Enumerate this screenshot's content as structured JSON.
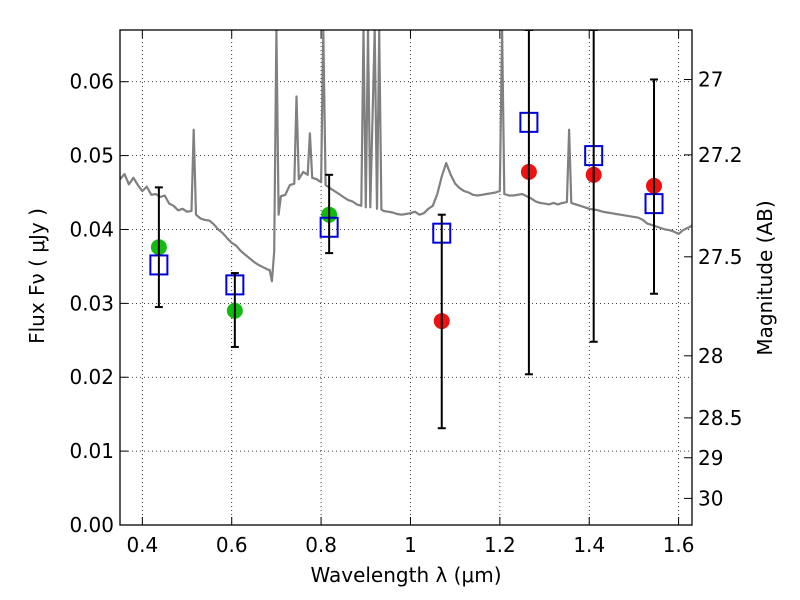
{
  "chart_data": {
    "type": "scatter",
    "xlabel": "Wavelength  λ (μm)",
    "ylabel": "Flux  Fν  ( μJy )",
    "ylabel_right": "Magnitude (AB)",
    "xlim": [
      0.35,
      1.63
    ],
    "ylim": [
      0.0,
      0.067
    ],
    "x_ticks": [
      0.4,
      0.6,
      0.8,
      1.0,
      1.2,
      1.4,
      1.6
    ],
    "x_tick_labels": [
      "0.4",
      "0.6",
      "0.8",
      "1",
      "1.2",
      "1.4",
      "1.6"
    ],
    "y_ticks": [
      0.0,
      0.01,
      0.02,
      0.03,
      0.04,
      0.05,
      0.06
    ],
    "y_tick_labels": [
      "0.00",
      "0.01",
      "0.02",
      "0.03",
      "0.04",
      "0.05",
      "0.06"
    ],
    "right_ticks": [
      {
        "flux": 0.0603,
        "label": "27"
      },
      {
        "flux": 0.0501,
        "label": "27.2"
      },
      {
        "flux": 0.0363,
        "label": "27.5"
      },
      {
        "flux": 0.0229,
        "label": "28"
      },
      {
        "flux": 0.0145,
        "label": "28.5"
      },
      {
        "flux": 0.0091,
        "label": "29"
      },
      {
        "flux": 0.0036,
        "label": "30"
      }
    ],
    "grid": true,
    "colors": {
      "model": "#808080",
      "green": "#11bb11",
      "red": "#ee1111",
      "square": "#0000dd",
      "errorbar": "#000000"
    },
    "series": [
      {
        "style": "line",
        "color": "#808080",
        "points": [
          [
            0.35,
            0.0468
          ],
          [
            0.36,
            0.0475
          ],
          [
            0.37,
            0.0461
          ],
          [
            0.38,
            0.047
          ],
          [
            0.39,
            0.046
          ],
          [
            0.4,
            0.0452
          ],
          [
            0.41,
            0.0458
          ],
          [
            0.42,
            0.0447
          ],
          [
            0.43,
            0.0448
          ],
          [
            0.44,
            0.0444
          ],
          [
            0.45,
            0.0446
          ],
          [
            0.46,
            0.0435
          ],
          [
            0.47,
            0.0432
          ],
          [
            0.48,
            0.0426
          ],
          [
            0.49,
            0.0428
          ],
          [
            0.5,
            0.0424
          ],
          [
            0.51,
            0.0425
          ],
          [
            0.515,
            0.0535
          ],
          [
            0.52,
            0.042
          ],
          [
            0.53,
            0.0415
          ],
          [
            0.54,
            0.0413
          ],
          [
            0.55,
            0.0412
          ],
          [
            0.56,
            0.0407
          ],
          [
            0.57,
            0.04
          ],
          [
            0.58,
            0.0395
          ],
          [
            0.59,
            0.0388
          ],
          [
            0.6,
            0.0382
          ],
          [
            0.61,
            0.0378
          ],
          [
            0.62,
            0.0371
          ],
          [
            0.63,
            0.0366
          ],
          [
            0.64,
            0.0361
          ],
          [
            0.65,
            0.0356
          ],
          [
            0.66,
            0.0352
          ],
          [
            0.67,
            0.0349
          ],
          [
            0.68,
            0.0346
          ],
          [
            0.685,
            0.0345
          ],
          [
            0.69,
            0.033
          ],
          [
            0.695,
            0.037
          ],
          [
            0.7,
            0.067
          ],
          [
            0.705,
            0.042
          ],
          [
            0.71,
            0.0445
          ],
          [
            0.72,
            0.0447
          ],
          [
            0.73,
            0.046
          ],
          [
            0.74,
            0.0462
          ],
          [
            0.745,
            0.058
          ],
          [
            0.75,
            0.0468
          ],
          [
            0.76,
            0.0478
          ],
          [
            0.77,
            0.0474
          ],
          [
            0.775,
            0.053
          ],
          [
            0.78,
            0.047
          ],
          [
            0.79,
            0.0468
          ],
          [
            0.8,
            0.0464
          ],
          [
            0.805,
            0.067
          ],
          [
            0.81,
            0.046
          ],
          [
            0.82,
            0.0456
          ],
          [
            0.83,
            0.0452
          ],
          [
            0.84,
            0.0448
          ],
          [
            0.85,
            0.0444
          ],
          [
            0.86,
            0.044
          ],
          [
            0.87,
            0.0438
          ],
          [
            0.88,
            0.0434
          ],
          [
            0.89,
            0.0432
          ],
          [
            0.895,
            0.067
          ],
          [
            0.9,
            0.043
          ],
          [
            0.905,
            0.067
          ],
          [
            0.91,
            0.043
          ],
          [
            0.92,
            0.067
          ],
          [
            0.925,
            0.0428
          ],
          [
            0.93,
            0.067
          ],
          [
            0.935,
            0.0427
          ],
          [
            0.94,
            0.0425
          ],
          [
            0.95,
            0.0424
          ],
          [
            0.96,
            0.0423
          ],
          [
            0.97,
            0.0421
          ],
          [
            0.98,
            0.042
          ],
          [
            0.99,
            0.0421
          ],
          [
            1.0,
            0.0422
          ],
          [
            1.01,
            0.0424
          ],
          [
            1.02,
            0.042
          ],
          [
            1.03,
            0.0422
          ],
          [
            1.04,
            0.0428
          ],
          [
            1.05,
            0.0432
          ],
          [
            1.06,
            0.0448
          ],
          [
            1.07,
            0.0472
          ],
          [
            1.08,
            0.049
          ],
          [
            1.09,
            0.0474
          ],
          [
            1.1,
            0.0462
          ],
          [
            1.11,
            0.0456
          ],
          [
            1.12,
            0.0452
          ],
          [
            1.13,
            0.045
          ],
          [
            1.14,
            0.0447
          ],
          [
            1.15,
            0.0446
          ],
          [
            1.16,
            0.0447
          ],
          [
            1.17,
            0.0448
          ],
          [
            1.18,
            0.0449
          ],
          [
            1.19,
            0.045
          ],
          [
            1.2,
            0.0452
          ],
          [
            1.205,
            0.067
          ],
          [
            1.21,
            0.0448
          ],
          [
            1.22,
            0.0446
          ],
          [
            1.23,
            0.0446
          ],
          [
            1.24,
            0.0447
          ],
          [
            1.25,
            0.0448
          ],
          [
            1.26,
            0.0445
          ],
          [
            1.27,
            0.0442
          ],
          [
            1.28,
            0.0438
          ],
          [
            1.29,
            0.0436
          ],
          [
            1.3,
            0.0435
          ],
          [
            1.31,
            0.0434
          ],
          [
            1.32,
            0.0436
          ],
          [
            1.33,
            0.0434
          ],
          [
            1.34,
            0.0436
          ],
          [
            1.35,
            0.0437
          ],
          [
            1.355,
            0.0535
          ],
          [
            1.36,
            0.0436
          ],
          [
            1.37,
            0.0434
          ],
          [
            1.38,
            0.0432
          ],
          [
            1.39,
            0.043
          ],
          [
            1.4,
            0.0428
          ],
          [
            1.41,
            0.0427
          ],
          [
            1.42,
            0.0426
          ],
          [
            1.43,
            0.0424
          ],
          [
            1.44,
            0.0423
          ],
          [
            1.45,
            0.0422
          ],
          [
            1.46,
            0.0421
          ],
          [
            1.47,
            0.042
          ],
          [
            1.48,
            0.0419
          ],
          [
            1.49,
            0.0418
          ],
          [
            1.5,
            0.0417
          ],
          [
            1.51,
            0.0416
          ],
          [
            1.52,
            0.0413
          ],
          [
            1.53,
            0.0408
          ],
          [
            1.54,
            0.0406
          ],
          [
            1.55,
            0.0404
          ],
          [
            1.56,
            0.0402
          ],
          [
            1.57,
            0.04
          ],
          [
            1.58,
            0.0399
          ],
          [
            1.59,
            0.0397
          ],
          [
            1.6,
            0.0394
          ],
          [
            1.61,
            0.0399
          ],
          [
            1.62,
            0.0402
          ],
          [
            1.63,
            0.0405
          ]
        ]
      },
      {
        "style": "filled-circle",
        "color": "#11bb11",
        "points": [
          [
            0.437,
            0.0376
          ],
          [
            0.607,
            0.029
          ],
          [
            0.818,
            0.042
          ]
        ]
      },
      {
        "style": "filled-circle",
        "color": "#ee1111",
        "points": [
          [
            1.07,
            0.0276
          ],
          [
            1.265,
            0.0478
          ],
          [
            1.41,
            0.0474
          ],
          [
            1.545,
            0.0459
          ]
        ]
      },
      {
        "style": "open-square",
        "color": "#0000dd",
        "points": [
          [
            0.437,
            0.0352
          ],
          [
            0.607,
            0.0325
          ],
          [
            0.818,
            0.0403
          ],
          [
            1.07,
            0.0395
          ],
          [
            1.265,
            0.0545
          ],
          [
            1.41,
            0.05
          ],
          [
            1.545,
            0.0435
          ]
        ]
      },
      {
        "style": "errorbar",
        "color": "#000000",
        "bars": [
          {
            "x": 0.437,
            "low": 0.0295,
            "high": 0.0457
          },
          {
            "x": 0.607,
            "low": 0.0241,
            "high": 0.0341
          },
          {
            "x": 0.818,
            "low": 0.0368,
            "high": 0.0474
          },
          {
            "x": 1.07,
            "low": 0.0131,
            "high": 0.042
          },
          {
            "x": 1.265,
            "low": 0.0204,
            "high": 0.067
          },
          {
            "x": 1.41,
            "low": 0.0248,
            "high": 0.067
          },
          {
            "x": 1.545,
            "low": 0.0313,
            "high": 0.0603
          }
        ]
      }
    ]
  }
}
